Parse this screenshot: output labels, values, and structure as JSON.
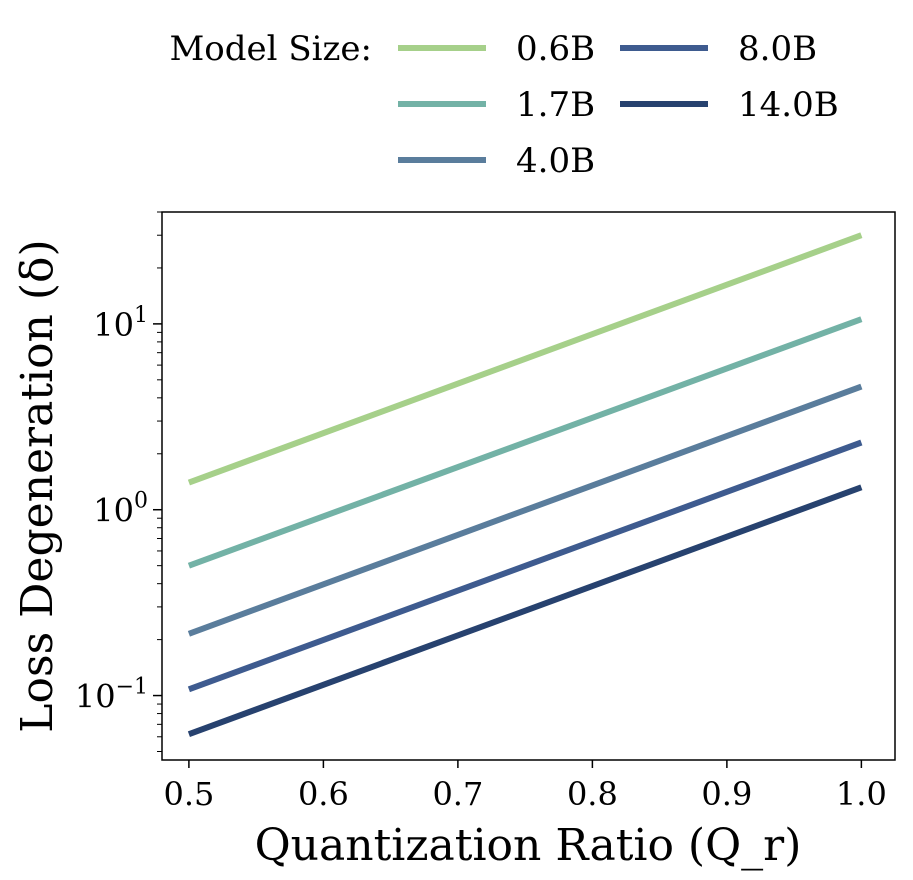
{
  "chart_data": {
    "type": "line",
    "title": "",
    "xlabel": "Quantization Ratio (Q_r)",
    "ylabel": "Loss Degeneration (δ)",
    "xscale": "linear",
    "yscale": "log",
    "xlim": [
      0.48,
      1.025
    ],
    "ylim": [
      0.045,
      40
    ],
    "x_ticks": [
      0.5,
      0.6,
      0.7,
      0.8,
      0.9,
      1.0
    ],
    "x_tick_labels": [
      "0.5",
      "0.6",
      "0.7",
      "0.8",
      "0.9",
      "1.0"
    ],
    "y_ticks": [
      0.1,
      1,
      10
    ],
    "y_tick_labels": [
      {
        "base": "10",
        "exp": "−1"
      },
      {
        "base": "10",
        "exp": "0"
      },
      {
        "base": "10",
        "exp": "1"
      }
    ],
    "grid": false,
    "legend": {
      "title": "Model Size:",
      "placement": "top, outside plot",
      "columns": 2
    },
    "series": [
      {
        "name": "0.6B",
        "color": "#a6d08a",
        "x": [
          0.5,
          1.0
        ],
        "y": [
          1.4,
          30.0
        ]
      },
      {
        "name": "1.7B",
        "color": "#73b2a6",
        "x": [
          0.5,
          1.0
        ],
        "y": [
          0.5,
          10.6
        ]
      },
      {
        "name": "4.0B",
        "color": "#5a7d9c",
        "x": [
          0.5,
          1.0
        ],
        "y": [
          0.215,
          4.6
        ]
      },
      {
        "name": "8.0B",
        "color": "#3e5b8f",
        "x": [
          0.5,
          1.0
        ],
        "y": [
          0.108,
          2.3
        ]
      },
      {
        "name": "14.0B",
        "color": "#27426f",
        "x": [
          0.5,
          1.0
        ],
        "y": [
          0.062,
          1.32
        ]
      }
    ]
  }
}
